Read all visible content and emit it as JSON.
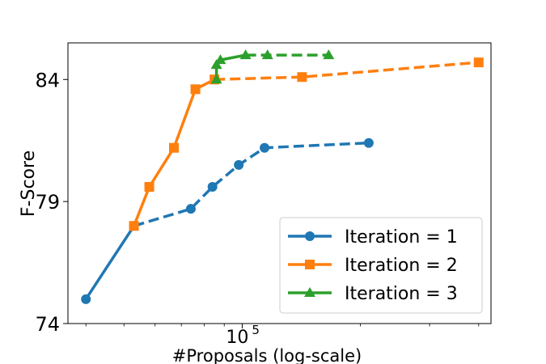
{
  "chart_data": {
    "type": "line",
    "title": "",
    "xlabel": "#Proposals (log-scale)",
    "ylabel": "F-Score",
    "xscale": "log",
    "xlim": [
      36000,
      430000
    ],
    "ylim": [
      74,
      85.5
    ],
    "yticks": [
      74,
      79,
      84
    ],
    "xticks": [
      {
        "value": 100000,
        "label_base": "10",
        "label_exp": "5"
      }
    ],
    "grid": false,
    "legend_position": "lower-right",
    "series": [
      {
        "name": "Iteration = 1",
        "color": "#1f77b4",
        "marker": "circle",
        "solid": [
          [
            40000,
            75.0
          ],
          [
            53000,
            78.0
          ]
        ],
        "dashed": [
          [
            53000,
            78.0
          ],
          [
            74000,
            78.7
          ],
          [
            84000,
            79.6
          ],
          [
            98000,
            80.5
          ],
          [
            114000,
            81.2
          ],
          [
            210000,
            81.4
          ]
        ]
      },
      {
        "name": "Iteration = 2",
        "color": "#ff7f0e",
        "marker": "square",
        "solid": [
          [
            53000,
            78.0
          ],
          [
            58000,
            79.6
          ],
          [
            67000,
            81.2
          ],
          [
            76000,
            83.6
          ],
          [
            85000,
            84.0
          ]
        ],
        "dashed": [
          [
            85000,
            84.0
          ],
          [
            142000,
            84.1
          ],
          [
            400000,
            84.7
          ]
        ]
      },
      {
        "name": "Iteration = 3",
        "color": "#2ca02c",
        "marker": "triangle",
        "solid": [
          [
            86000,
            84.0
          ],
          [
            86000,
            84.6
          ],
          [
            88000,
            84.8
          ],
          [
            102000,
            85.0
          ]
        ],
        "dashed": [
          [
            102000,
            85.0
          ],
          [
            116000,
            85.0
          ],
          [
            166000,
            85.0
          ]
        ]
      }
    ]
  }
}
